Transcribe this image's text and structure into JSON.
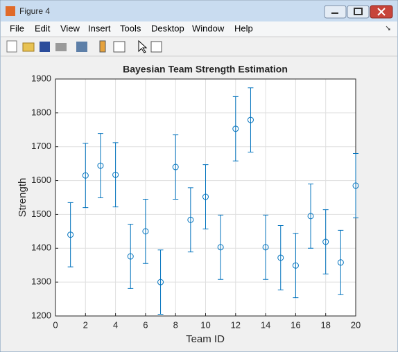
{
  "window": {
    "title": "Figure 4",
    "menu": [
      "File",
      "Edit",
      "View",
      "Insert",
      "Tools",
      "Desktop",
      "Window",
      "Help"
    ]
  },
  "chart_data": {
    "type": "errorbar",
    "title": "Bayesian Team Strength Estimation",
    "xlabel": "Team ID",
    "ylabel": "Strength",
    "x": [
      1,
      2,
      3,
      4,
      5,
      6,
      7,
      8,
      9,
      10,
      11,
      12,
      13,
      14,
      15,
      16,
      17,
      18,
      19,
      20
    ],
    "values": [
      1440,
      1615,
      1644,
      1617,
      1376,
      1450,
      1300,
      1640,
      1484,
      1552,
      1403,
      1753,
      1779,
      1403,
      1372,
      1349,
      1495,
      1419,
      1358,
      1585
    ],
    "errors": [
      95,
      95,
      95,
      95,
      95,
      95,
      95,
      95,
      95,
      95,
      95,
      95,
      95,
      95,
      95,
      95,
      95,
      95,
      95,
      95
    ],
    "color": "#0072bd",
    "xlim": [
      0,
      20
    ],
    "xticks": [
      0,
      2,
      4,
      6,
      8,
      10,
      12,
      14,
      16,
      18,
      20
    ],
    "ylim": [
      1200,
      1900
    ],
    "yticks": [
      1200,
      1300,
      1400,
      1500,
      1600,
      1700,
      1800,
      1900
    ],
    "grid": true
  }
}
